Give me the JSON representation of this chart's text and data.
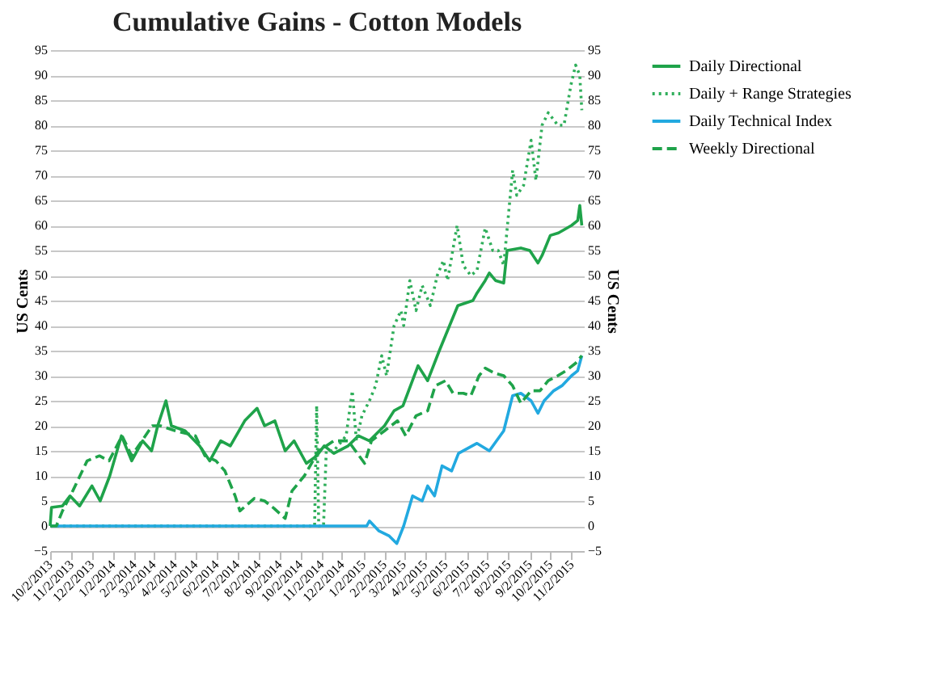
{
  "chart_data": {
    "type": "line",
    "title": "Cumulative Gains - Cotton Models",
    "ylabel": "US Cents",
    "y2label": "US Cents",
    "xlim": [
      "2013-10-02",
      "2015-11-20"
    ],
    "xticks": [
      {
        "value": "2013-10-02",
        "label": "10/2/2013"
      },
      {
        "value": "2013-11-02",
        "label": "11/2/2013"
      },
      {
        "value": "2013-12-02",
        "label": "12/2/2013"
      },
      {
        "value": "2014-01-02",
        "label": "1/2/2014"
      },
      {
        "value": "2014-02-02",
        "label": "2/2/2014"
      },
      {
        "value": "2014-03-02",
        "label": "3/2/2014"
      },
      {
        "value": "2014-04-02",
        "label": "4/2/2014"
      },
      {
        "value": "2014-05-02",
        "label": "5/2/2014"
      },
      {
        "value": "2014-06-02",
        "label": "6/2/2014"
      },
      {
        "value": "2014-07-02",
        "label": "7/2/2014"
      },
      {
        "value": "2014-08-02",
        "label": "8/2/2014"
      },
      {
        "value": "2014-09-02",
        "label": "9/2/2014"
      },
      {
        "value": "2014-10-02",
        "label": "10/2/2014"
      },
      {
        "value": "2014-11-02",
        "label": "11/2/2014"
      },
      {
        "value": "2014-12-02",
        "label": "12/2/2014"
      },
      {
        "value": "2015-01-02",
        "label": "1/2/2015"
      },
      {
        "value": "2015-02-02",
        "label": "2/2/2015"
      },
      {
        "value": "2015-03-02",
        "label": "3/2/2015"
      },
      {
        "value": "2015-04-02",
        "label": "4/2/2015"
      },
      {
        "value": "2015-05-02",
        "label": "5/2/2015"
      },
      {
        "value": "2015-06-02",
        "label": "6/2/2015"
      },
      {
        "value": "2015-07-02",
        "label": "7/2/2015"
      },
      {
        "value": "2015-08-02",
        "label": "8/2/2015"
      },
      {
        "value": "2015-09-02",
        "label": "9/2/2015"
      },
      {
        "value": "2015-10-02",
        "label": "10/2/2015"
      },
      {
        "value": "2015-11-02",
        "label": "11/2/2015"
      }
    ],
    "ylim": [
      -5,
      95
    ],
    "yticks": [
      -5,
      0,
      5,
      10,
      15,
      20,
      25,
      30,
      35,
      40,
      45,
      50,
      55,
      60,
      65,
      70,
      75,
      80,
      85,
      90,
      95
    ],
    "y2lim": [
      -5,
      95
    ],
    "y2ticks": [
      -5,
      0,
      5,
      10,
      15,
      20,
      25,
      30,
      35,
      40,
      45,
      50,
      55,
      60,
      65,
      70,
      75,
      80,
      85,
      90,
      95
    ],
    "grid": "y",
    "legend": "right",
    "marker": "none",
    "series": [
      {
        "name": "Daily Directional",
        "color": "#1fa34a",
        "line_style": "solid",
        "x": [
          "2013-10-02",
          "2013-10-04",
          "2013-10-20",
          "2013-10-31",
          "2013-11-14",
          "2013-12-02",
          "2013-12-14",
          "2013-12-28",
          "2014-01-14",
          "2014-01-29",
          "2014-02-14",
          "2014-02-27",
          "2014-03-08",
          "2014-03-20",
          "2014-03-28",
          "2014-04-17",
          "2014-05-08",
          "2014-05-23",
          "2014-06-08",
          "2014-06-22",
          "2014-07-13",
          "2014-07-31",
          "2014-08-11",
          "2014-08-26",
          "2014-09-10",
          "2014-09-23",
          "2014-10-11",
          "2014-10-26",
          "2014-11-06",
          "2014-11-20",
          "2014-12-11",
          "2014-12-26",
          "2015-01-11",
          "2015-02-02",
          "2015-02-16",
          "2015-03-01",
          "2015-03-23",
          "2015-04-06",
          "2015-04-23",
          "2015-05-08",
          "2015-05-20",
          "2015-06-11",
          "2015-06-17",
          "2015-06-29",
          "2015-07-05",
          "2015-07-14",
          "2015-07-26",
          "2015-07-31",
          "2015-08-20",
          "2015-09-02",
          "2015-09-14",
          "2015-09-20",
          "2015-10-02",
          "2015-10-14",
          "2015-11-02",
          "2015-11-11",
          "2015-11-14",
          "2015-11-17"
        ],
        "values": [
          0,
          3.7,
          4,
          6,
          4,
          8,
          5,
          10,
          18,
          13,
          17,
          15,
          20,
          25,
          20,
          19,
          16,
          13,
          17,
          16,
          21,
          23.5,
          20,
          21,
          15,
          17,
          12.5,
          14,
          16,
          14.5,
          16,
          18,
          17,
          20,
          23,
          24,
          32,
          29,
          35,
          40,
          44,
          45,
          46.5,
          49,
          50.5,
          49,
          48.5,
          55,
          55.5,
          55,
          52.5,
          54,
          58,
          58.5,
          60,
          61,
          64,
          60
        ]
      },
      {
        "name": "Daily + Range Strategies",
        "color": "#2fae5a",
        "line_style": "dotted",
        "x": [
          "2013-10-02",
          "2014-10-23",
          "2014-10-26",
          "2014-10-29",
          "2014-11-05",
          "2014-11-09",
          "2014-11-20",
          "2014-12-08",
          "2014-12-17",
          "2014-12-23",
          "2014-12-31",
          "2015-01-11",
          "2015-01-20",
          "2015-01-29",
          "2015-02-05",
          "2015-02-16",
          "2015-02-26",
          "2015-03-02",
          "2015-03-11",
          "2015-03-20",
          "2015-03-29",
          "2015-04-10",
          "2015-04-20",
          "2015-04-29",
          "2015-05-05",
          "2015-05-19",
          "2015-05-28",
          "2015-06-08",
          "2015-06-17",
          "2015-06-29",
          "2015-07-10",
          "2015-07-18",
          "2015-07-26",
          "2015-08-08",
          "2015-08-14",
          "2015-08-24",
          "2015-09-04",
          "2015-09-11",
          "2015-09-20",
          "2015-09-29",
          "2015-10-13",
          "2015-10-22",
          "2015-11-01",
          "2015-11-08",
          "2015-11-14",
          "2015-11-17"
        ],
        "values": [
          0,
          0,
          24,
          0,
          0,
          15,
          15,
          18,
          27,
          17,
          22,
          25,
          28,
          34,
          30,
          40,
          43,
          40,
          49,
          43,
          48,
          44,
          50,
          53,
          49,
          60,
          52,
          50,
          51,
          59.5,
          55,
          55,
          52,
          71,
          66,
          68,
          77,
          69,
          80,
          82.5,
          80,
          80,
          88,
          92,
          90,
          83
        ]
      },
      {
        "name": "Daily Technical Index",
        "color": "#22a9e0",
        "line_style": "solid",
        "x": [
          "2013-10-02",
          "2015-01-07",
          "2015-01-11",
          "2015-01-25",
          "2015-02-09",
          "2015-02-20",
          "2015-03-02",
          "2015-03-15",
          "2015-03-29",
          "2015-04-06",
          "2015-04-16",
          "2015-04-27",
          "2015-05-11",
          "2015-05-21",
          "2015-06-17",
          "2015-07-05",
          "2015-07-26",
          "2015-08-08",
          "2015-08-20",
          "2015-09-04",
          "2015-09-14",
          "2015-09-23",
          "2015-10-07",
          "2015-10-19",
          "2015-11-02",
          "2015-11-11",
          "2015-11-17"
        ],
        "values": [
          0,
          0,
          1,
          -1,
          -2,
          -3.5,
          0,
          6,
          5,
          8,
          6,
          12,
          11,
          14.5,
          16.5,
          15,
          19,
          26,
          26.5,
          25,
          22.5,
          25,
          27,
          28,
          30,
          31,
          34
        ]
      },
      {
        "name": "Weekly Directional",
        "color": "#1fa34a",
        "line_style": "dashed",
        "x": [
          "2013-10-02",
          "2013-10-11",
          "2013-10-20",
          "2013-11-04",
          "2013-11-25",
          "2013-12-13",
          "2013-12-27",
          "2014-01-15",
          "2014-01-29",
          "2014-02-13",
          "2014-02-28",
          "2014-03-12",
          "2014-04-03",
          "2014-05-02",
          "2014-05-16",
          "2014-06-01",
          "2014-06-14",
          "2014-06-29",
          "2014-07-06",
          "2014-07-27",
          "2014-08-11",
          "2014-08-25",
          "2014-09-10",
          "2014-09-20",
          "2014-10-08",
          "2014-10-29",
          "2014-11-20",
          "2014-12-11",
          "2015-01-04",
          "2015-01-14",
          "2015-02-02",
          "2015-02-21",
          "2015-03-05",
          "2015-03-20",
          "2015-04-06",
          "2015-04-17",
          "2015-05-02",
          "2015-05-13",
          "2015-05-28",
          "2015-06-08",
          "2015-06-20",
          "2015-06-29",
          "2015-07-13",
          "2015-07-26",
          "2015-08-08",
          "2015-08-20",
          "2015-09-04",
          "2015-09-17",
          "2015-09-29",
          "2015-10-13",
          "2015-10-25",
          "2015-11-08",
          "2015-11-17"
        ],
        "values": [
          0,
          0,
          3,
          7,
          13,
          14,
          13,
          18,
          14,
          17,
          20,
          20,
          19,
          18,
          14,
          13,
          11,
          6,
          3,
          5.5,
          5,
          3.5,
          1.5,
          7,
          10,
          15,
          17,
          17,
          12.5,
          17,
          19,
          21,
          18,
          22,
          23,
          28,
          29,
          26.5,
          26.5,
          26,
          30,
          31.5,
          30.5,
          30,
          28,
          24.5,
          27,
          27,
          29,
          30,
          31,
          32.5,
          34
        ]
      }
    ]
  }
}
